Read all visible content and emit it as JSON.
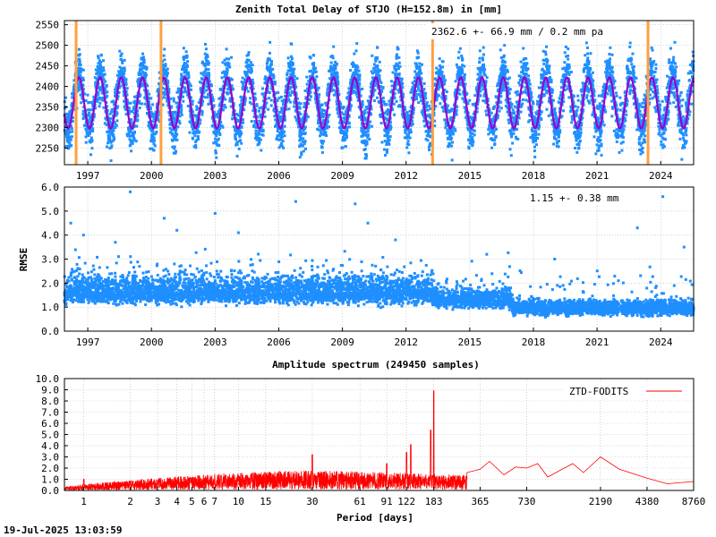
{
  "footer": {
    "timestamp": "19-Jul-2025 13:03:59"
  },
  "colors": {
    "ztd": "#1f8fff",
    "model": "#9900cc",
    "break": "#ff9f3f",
    "spectrum": "#ff0000",
    "grid": "#b8b8b8"
  },
  "chart_data": [
    {
      "id": "ztd",
      "type": "scatter",
      "title": "Zenith Total Delay of STJO (H=152.8m) in [mm]",
      "annotation": "2362.6 +-  66.9 mm /  0.2 mm pa",
      "xlim": [
        1995.9,
        2025.55
      ],
      "ylim": [
        2210,
        2560
      ],
      "xticks": [
        1997,
        2000,
        2003,
        2006,
        2009,
        2012,
        2015,
        2018,
        2021,
        2024
      ],
      "yticks": [
        2250,
        2300,
        2350,
        2400,
        2450,
        2500,
        2550
      ],
      "series": {
        "mean": 2362.6,
        "seasonal_amplitude": 66.9,
        "trend_per_year": 0.2,
        "model_mean": 2360,
        "model_amplitude": 62,
        "peak_day_fraction": 0.58
      },
      "breaks": [
        1996.45,
        2000.45,
        2013.25,
        2023.4
      ],
      "grid": true
    },
    {
      "id": "rmse",
      "type": "scatter",
      "title": "",
      "ylabel": "RMSE",
      "annotation": "1.15 +-  0.38 mm",
      "xlim": [
        1995.9,
        2025.55
      ],
      "ylim": [
        0,
        6
      ],
      "xticks": [
        1997,
        2000,
        2003,
        2006,
        2009,
        2012,
        2015,
        2018,
        2021,
        2024
      ],
      "yticks": [
        "0.0",
        "1.0",
        "2.0",
        "3.0",
        "4.0",
        "5.0",
        "6.0"
      ],
      "segments": [
        {
          "from": 1995.9,
          "to": 2013.25,
          "median": 1.6,
          "spread_low": 0.55,
          "spread_high": 0.75
        },
        {
          "from": 2013.25,
          "to": 2017.0,
          "median": 1.3,
          "spread_low": 0.4,
          "spread_high": 0.5
        },
        {
          "from": 2017.0,
          "to": 2025.55,
          "median": 0.95,
          "spread_low": 0.35,
          "spread_high": 0.35
        }
      ],
      "outliers": [
        {
          "x": 1996.2,
          "y": 4.5
        },
        {
          "x": 1996.8,
          "y": 4.0
        },
        {
          "x": 1998.3,
          "y": 3.7
        },
        {
          "x": 1999.0,
          "y": 5.8
        },
        {
          "x": 2000.6,
          "y": 4.7
        },
        {
          "x": 2001.2,
          "y": 4.2
        },
        {
          "x": 2003.0,
          "y": 4.9
        },
        {
          "x": 2004.1,
          "y": 4.1
        },
        {
          "x": 2006.8,
          "y": 5.4
        },
        {
          "x": 2009.6,
          "y": 5.3
        },
        {
          "x": 2010.2,
          "y": 4.5
        },
        {
          "x": 2011.5,
          "y": 3.8
        },
        {
          "x": 2015.8,
          "y": 3.2
        },
        {
          "x": 2019.0,
          "y": 3.0
        },
        {
          "x": 2022.9,
          "y": 4.3
        },
        {
          "x": 2024.1,
          "y": 5.6
        },
        {
          "x": 2025.1,
          "y": 3.5
        }
      ],
      "grid": true
    },
    {
      "id": "spectrum",
      "type": "line",
      "title": "Amplitude spectrum (249450 samples)",
      "xlabel": "Period [days]",
      "legend": "ZTD-FODITS",
      "legend_position": "top-right",
      "x_scale": "log",
      "xlim": [
        0.75,
        8760
      ],
      "ylim": [
        0,
        10
      ],
      "xticks": [
        "1",
        "2",
        "3",
        "4",
        "5",
        "6",
        "7",
        "10",
        "15",
        "30",
        "61",
        "91",
        "122",
        "183",
        "365",
        "730",
        "2190",
        "4380",
        "8760"
      ],
      "xtick_values": [
        1,
        2,
        3,
        4,
        5,
        6,
        7,
        10,
        15,
        30,
        61,
        91,
        122,
        183,
        365,
        730,
        2190,
        4380,
        8760
      ],
      "yticks": [
        "0.0",
        "1.0",
        "2.0",
        "3.0",
        "4.0",
        "5.0",
        "6.0",
        "7.0",
        "8.0",
        "9.0",
        "10.0"
      ],
      "envelope": [
        {
          "period": 0.75,
          "amplitude": 0.3
        },
        {
          "period": 1,
          "amplitude": 0.5
        },
        {
          "period": 2,
          "amplitude": 0.8
        },
        {
          "period": 4,
          "amplitude": 1.1
        },
        {
          "period": 10,
          "amplitude": 1.4
        },
        {
          "period": 30,
          "amplitude": 1.6
        },
        {
          "period": 100,
          "amplitude": 1.4
        },
        {
          "period": 300,
          "amplitude": 1.2
        },
        {
          "period": 8760,
          "amplitude": 1.0
        }
      ],
      "peaks": [
        {
          "period": 183,
          "amplitude": 8.9
        },
        {
          "period": 175,
          "amplitude": 5.4
        },
        {
          "period": 130,
          "amplitude": 4.1
        },
        {
          "period": 122,
          "amplitude": 3.4
        },
        {
          "period": 91,
          "amplitude": 2.4
        },
        {
          "period": 30,
          "amplitude": 3.2
        },
        {
          "period": 1,
          "amplitude": 1.0
        }
      ],
      "long_period": [
        {
          "period": 300,
          "amplitude": 1.6
        },
        {
          "period": 365,
          "amplitude": 1.9
        },
        {
          "period": 420,
          "amplitude": 2.6
        },
        {
          "period": 520,
          "amplitude": 1.4
        },
        {
          "period": 620,
          "amplitude": 2.1
        },
        {
          "period": 730,
          "amplitude": 2.0
        },
        {
          "period": 860,
          "amplitude": 2.4
        },
        {
          "period": 1000,
          "amplitude": 1.2
        },
        {
          "period": 1200,
          "amplitude": 1.8
        },
        {
          "period": 1450,
          "amplitude": 2.4
        },
        {
          "period": 1700,
          "amplitude": 1.6
        },
        {
          "period": 2190,
          "amplitude": 3.0
        },
        {
          "period": 2900,
          "amplitude": 1.9
        },
        {
          "period": 4380,
          "amplitude": 1.1
        },
        {
          "period": 5900,
          "amplitude": 0.6
        },
        {
          "period": 8760,
          "amplitude": 0.8
        }
      ],
      "grid": true
    }
  ]
}
